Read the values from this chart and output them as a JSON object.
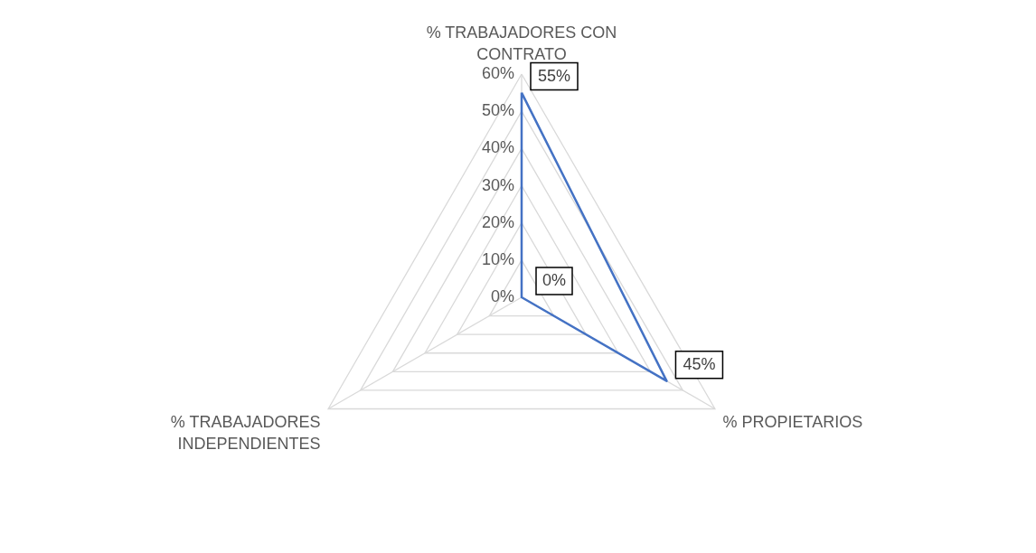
{
  "chart_data": {
    "type": "radar",
    "categories": [
      "% TRABAJADORES CON CONTRATO",
      "% PROPIETARIOS",
      "% TRABAJADORES INDEPENDIENTES"
    ],
    "series": [
      {
        "color": "#4472c4",
        "values": [
          55,
          45,
          0
        ],
        "value_labels": [
          "55%",
          "45%",
          "0%"
        ]
      }
    ],
    "ylim": [
      0,
      60
    ],
    "yticks": [
      {
        "value": 0,
        "label": "0%"
      },
      {
        "value": 10,
        "label": "10%"
      },
      {
        "value": 20,
        "label": "20%"
      },
      {
        "value": 30,
        "label": "30%"
      },
      {
        "value": 40,
        "label": "40%"
      },
      {
        "value": 50,
        "label": "50%"
      },
      {
        "value": 60,
        "label": "60%"
      }
    ],
    "grid": true
  }
}
